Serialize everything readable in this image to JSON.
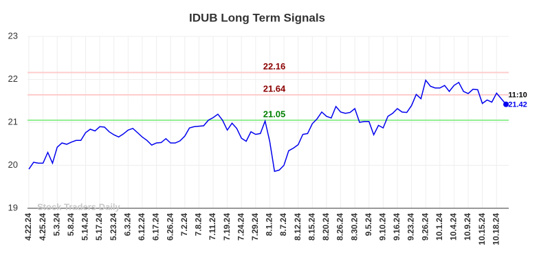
{
  "chart_data": {
    "type": "line",
    "title": "IDUB Long Term Signals",
    "watermark": "Stock Traders Daily",
    "categories": [
      "4.22.24",
      null,
      null,
      "4.25.24",
      null,
      null,
      "5.3.24",
      null,
      null,
      "5.8.24",
      null,
      null,
      "5.14.24",
      null,
      null,
      "5.17.24",
      null,
      null,
      "5.23.24",
      null,
      null,
      "6.3.24",
      null,
      null,
      "6.12.24",
      null,
      null,
      "6.17.24",
      null,
      null,
      "6.26.24",
      null,
      null,
      "7.2.24",
      null,
      null,
      "7.8.24",
      null,
      null,
      "7.11.24",
      null,
      null,
      "7.19.24",
      null,
      null,
      "7.24.24",
      null,
      null,
      "7.29.24",
      null,
      null,
      "8.1.24",
      null,
      null,
      "8.7.24",
      null,
      null,
      "8.12.24",
      null,
      null,
      "8.15.24",
      null,
      null,
      "8.20.24",
      null,
      null,
      "8.26.24",
      null,
      null,
      "8.30.24",
      null,
      null,
      "9.5.24",
      null,
      null,
      "9.10.24",
      null,
      null,
      "9.16.24",
      null,
      null,
      "9.23.24",
      null,
      null,
      "9.26.24",
      null,
      null,
      "10.1.24",
      null,
      null,
      "10.4.24",
      null,
      null,
      "10.9.24",
      null,
      null,
      "10.15.24",
      null,
      null,
      "10.18.24",
      null,
      null
    ],
    "values": [
      19.91,
      20.07,
      20.05,
      20.05,
      20.3,
      20.05,
      20.42,
      20.52,
      20.49,
      20.54,
      20.58,
      20.58,
      20.76,
      20.84,
      20.8,
      20.9,
      20.89,
      20.78,
      20.71,
      20.66,
      20.73,
      20.82,
      20.86,
      20.76,
      20.66,
      20.58,
      20.47,
      20.52,
      20.53,
      20.62,
      20.52,
      20.52,
      20.57,
      20.68,
      20.87,
      20.9,
      20.91,
      20.92,
      21.05,
      21.11,
      21.19,
      21.05,
      20.82,
      20.98,
      20.86,
      20.63,
      20.56,
      20.78,
      20.72,
      20.74,
      21.03,
      20.55,
      19.86,
      19.89,
      20.0,
      20.34,
      20.4,
      20.48,
      20.72,
      20.74,
      20.97,
      21.08,
      21.24,
      21.14,
      21.1,
      21.37,
      21.24,
      21.21,
      21.23,
      21.32,
      21.0,
      21.02,
      21.02,
      20.71,
      20.93,
      20.87,
      21.14,
      21.21,
      21.32,
      21.24,
      21.23,
      21.39,
      21.65,
      21.55,
      21.98,
      21.84,
      21.8,
      21.8,
      21.86,
      21.72,
      21.86,
      21.93,
      21.72,
      21.67,
      21.77,
      21.76,
      21.44,
      21.52,
      21.47,
      21.68,
      21.55,
      21.42
    ],
    "color": "#0000ee",
    "ylim": [
      19,
      23
    ],
    "yticks": [
      19,
      20,
      21,
      22,
      23
    ],
    "grid": true,
    "hlines": [
      {
        "value": 22.16,
        "color": "#ffcccc",
        "label_color": "#8b0000"
      },
      {
        "value": 21.64,
        "color": "#ffcccc",
        "label_color": "#8b0000"
      },
      {
        "value": 21.05,
        "color": "#90ee90",
        "label_color": "#008000"
      }
    ],
    "last_time": "11:10"
  }
}
